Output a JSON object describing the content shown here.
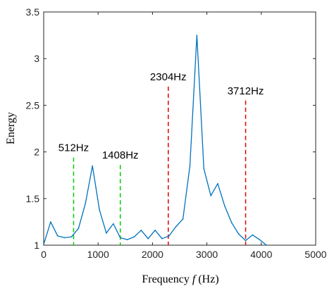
{
  "chart_data": {
    "type": "line",
    "xlabel_prefix": "Frequency ",
    "xlabel_var": "f",
    "xlabel_suffix": " (Hz)",
    "ylabel": "Energy",
    "xlim": [
      0,
      5000
    ],
    "ylim": [
      1,
      3.5
    ],
    "xticks": [
      0,
      1000,
      2000,
      3000,
      4000,
      5000
    ],
    "yticks": [
      1,
      1.5,
      2,
      2.5,
      3,
      3.5
    ],
    "xtick_labels": [
      "0",
      "1000",
      "2000",
      "3000",
      "4000",
      "5000"
    ],
    "ytick_labels": [
      "1",
      "1.5",
      "2",
      "2.5",
      "3",
      "3.5"
    ],
    "grid": false,
    "series": [
      {
        "color": "#0072BD",
        "x": [
          0,
          128,
          256,
          384,
          512,
          640,
          768,
          896,
          1024,
          1152,
          1280,
          1408,
          1536,
          1664,
          1792,
          1920,
          2048,
          2176,
          2304,
          2432,
          2560,
          2688,
          2816,
          2944,
          3072,
          3200,
          3328,
          3456,
          3584,
          3712,
          3840,
          3968,
          4096
        ],
        "y": [
          1.01,
          1.25,
          1.1,
          1.08,
          1.09,
          1.18,
          1.45,
          1.85,
          1.38,
          1.13,
          1.23,
          1.08,
          1.06,
          1.09,
          1.16,
          1.07,
          1.16,
          1.07,
          1.1,
          1.2,
          1.28,
          1.85,
          3.25,
          1.82,
          1.53,
          1.66,
          1.42,
          1.24,
          1.12,
          1.05,
          1.11,
          1.06,
          1.0
        ]
      }
    ],
    "annotations": [
      {
        "label": "512Hz",
        "x": 550,
        "y_top": 1.94,
        "color": "#00CC00"
      },
      {
        "label": "1408Hz",
        "x": 1408,
        "y_top": 1.86,
        "color": "#00CC00"
      },
      {
        "label": "2304Hz",
        "x": 2290,
        "y_top": 2.7,
        "color": "#E00000"
      },
      {
        "label": "3712Hz",
        "x": 3712,
        "y_top": 2.55,
        "color": "#E00000"
      }
    ]
  }
}
